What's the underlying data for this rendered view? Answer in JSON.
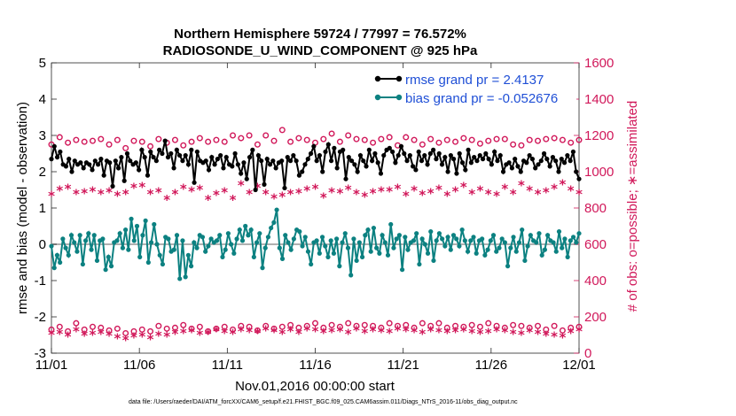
{
  "chart_data": {
    "type": "line",
    "title_line1": "Northern Hemisphere 59724 / 77997 = 76.572%",
    "title_line2": "RADIOSONDE_U_WIND_COMPONENT @ 925 hPa",
    "xlabel": "Nov.01,2016 00:00:00 start",
    "ylabel_left": "rmse and bias (model - observation)",
    "ylabel_right": "# of obs: o=possible; ∗=assimilated",
    "x_ticks": [
      "11/01",
      "11/06",
      "11/11",
      "11/16",
      "11/21",
      "11/26",
      "12/01"
    ],
    "x_range_days": [
      0,
      30
    ],
    "ylim_left": [
      -3,
      5
    ],
    "y_ticks_left": [
      "-3",
      "-2",
      "-1",
      "0",
      "1",
      "2",
      "3",
      "4",
      "5"
    ],
    "ylim_right": [
      0,
      1600
    ],
    "y_ticks_right": [
      "0",
      "200",
      "400",
      "600",
      "800",
      "1000",
      "1200",
      "1400",
      "1600"
    ],
    "footer": "data file: /Users/raeder/DAI/ATM_forcXX/CAM6_setup/f.e21.FHIST_BGC.f09_025.CAM6assim.011/Diags_NTrS_2016-11/obs_diag_output.nc",
    "colors": {
      "rmse": "#000000",
      "bias": "#0c8181",
      "obs": "#d1185a",
      "legend_text": "#1f4fd6",
      "zero_line": "#b0b0b0"
    },
    "series": [
      {
        "name": "rmse grand pr = 2.4137",
        "axis": "left",
        "style": "line-dot",
        "color": "#000000",
        "values": [
          2.35,
          2.7,
          2.4,
          2.55,
          2.2,
          2.15,
          2.35,
          2.0,
          2.3,
          2.2,
          2.25,
          2.1,
          2.25,
          2.2,
          2.05,
          2.3,
          2.2,
          2.35,
          1.9,
          2.3,
          2.25,
          1.6,
          2.3,
          2.1,
          2.4,
          1.75,
          2.5,
          2.3,
          2.2,
          2.25,
          2.05,
          2.6,
          2.4,
          1.9,
          2.55,
          2.4,
          2.3,
          2.6,
          2.5,
          2.85,
          2.4,
          2.5,
          2.1,
          2.6,
          2.45,
          2.3,
          2.45,
          2.2,
          2.6,
          1.7,
          2.55,
          2.3,
          2.25,
          2.3,
          2.05,
          2.4,
          2.2,
          2.35,
          2.45,
          2.1,
          2.4,
          2.2,
          2.15,
          2.5,
          2.2,
          1.95,
          2.25,
          1.8,
          2.4,
          2.6,
          1.5,
          2.45,
          2.3,
          1.65,
          2.35,
          2.2,
          2.3,
          2.1,
          2.25,
          2.3,
          1.55,
          2.4,
          2.3,
          2.45,
          2.3,
          1.9,
          2.0,
          2.2,
          2.35,
          2.5,
          2.7,
          2.3,
          2.45,
          2.0,
          2.55,
          2.75,
          2.3,
          2.65,
          2.1,
          2.55,
          2.6,
          1.8,
          2.4,
          2.3,
          2.2,
          2.0,
          2.45,
          2.3,
          2.15,
          2.6,
          2.3,
          2.5,
          2.25,
          1.95,
          2.45,
          2.6,
          2.65,
          2.55,
          2.25,
          2.45,
          2.7,
          2.5,
          2.3,
          2.45,
          2.15,
          2.05,
          2.55,
          2.3,
          2.45,
          2.2,
          2.5,
          2.6,
          2.35,
          2.5,
          2.2,
          2.4,
          2.0,
          2.45,
          2.35,
          1.95,
          2.5,
          2.25,
          2.05,
          2.6,
          2.25,
          2.4,
          2.3,
          2.45,
          2.35,
          2.5,
          2.35,
          2.2,
          2.55,
          2.3,
          2.45,
          2.0,
          2.2,
          2.25,
          2.1,
          2.35,
          2.15,
          2.0,
          2.3,
          2.25,
          2.45,
          2.35,
          2.1,
          2.2,
          2.3,
          2.5,
          2.35,
          2.15,
          2.4,
          2.3,
          2.0,
          2.35,
          2.25,
          2.45,
          2.3,
          2.55,
          2.0,
          1.8
        ]
      },
      {
        "name": "bias grand pr = -0.052676",
        "axis": "left",
        "style": "line-dot",
        "color": "#0c8181",
        "values": [
          -0.05,
          -0.65,
          -0.3,
          -0.5,
          0.15,
          -0.1,
          -0.3,
          0.25,
          0.05,
          -0.2,
          0.25,
          -0.55,
          0.1,
          0.3,
          -0.15,
          0.25,
          -0.45,
          0.1,
          0.15,
          -0.7,
          -0.35,
          -0.6,
          0.05,
          0.1,
          0.3,
          -0.1,
          0.4,
          -0.15,
          0.7,
          0.1,
          0.5,
          -0.35,
          0.25,
          0.65,
          -0.5,
          0.05,
          0.55,
          0.0,
          -0.3,
          -0.55,
          0.2,
          0.15,
          -0.2,
          -0.15,
          0.25,
          -0.95,
          0.1,
          -0.9,
          -0.3,
          -0.6,
          0.05,
          -0.1,
          0.25,
          0.2,
          -0.2,
          -0.05,
          0.15,
          0.05,
          0.1,
          0.25,
          -0.35,
          -0.15,
          0.3,
          0.0,
          -0.25,
          0.15,
          0.4,
          0.1,
          0.5,
          0.25,
          0.4,
          -0.35,
          0.05,
          0.3,
          -0.65,
          -0.1,
          0.2,
          0.45,
          0.6,
          0.95,
          -0.1,
          -0.4,
          0.25,
          0.05,
          -0.15,
          0.15,
          0.4,
          0.35,
          -0.05,
          0.2,
          -0.2,
          -0.55,
          0.05,
          0.1,
          -0.25,
          0.2,
          -0.05,
          -0.35,
          0.1,
          -0.25,
          0.15,
          -0.6,
          0.05,
          0.3,
          -0.1,
          -0.85,
          0.15,
          -0.45,
          0.05,
          -0.35,
          0.25,
          0.4,
          -0.2,
          0.45,
          -0.1,
          -0.25,
          0.25,
          0.05,
          -0.3,
          0.55,
          -0.1,
          0.15,
          0.25,
          -0.7,
          0.2,
          -0.15,
          0.05,
          0.1,
          0.3,
          -0.55,
          0.15,
          0.0,
          -0.25,
          0.35,
          -0.45,
          0.1,
          0.3,
          0.15,
          -0.05,
          0.2,
          -0.15,
          0.25,
          0.15,
          -0.05,
          0.4,
          0.1,
          -0.2,
          0.1,
          0.2,
          -0.25,
          0.1,
          0.15,
          -0.3,
          -0.15,
          0.1,
          0.25,
          -0.2,
          -0.1,
          0.15,
          0.05,
          -0.6,
          -0.1,
          0.2,
          -0.2,
          0.05,
          0.4,
          -0.45,
          -0.05,
          0.25,
          0.1,
          0.05,
          0.3,
          -0.3,
          -0.15,
          0.25,
          0.1,
          0.05,
          -0.2,
          0.35,
          -0.1,
          0.15,
          -0.35,
          0.1,
          0.2,
          0.05,
          0.3
        ]
      },
      {
        "name": "possible (upper)",
        "axis": "right",
        "style": "circle",
        "color": "#d1185a",
        "values": [
          1150,
          1190,
          1160,
          1175,
          1165,
          1170,
          1180,
          1150,
          1175,
          1130,
          1170,
          1165,
          1140,
          1180,
          1160,
          1175,
          1145,
          1165,
          1185,
          1165,
          1175,
          1165,
          1200,
          1185,
          1200,
          1150,
          1200,
          1170,
          1230,
          1165,
          1185,
          1175,
          1160,
          1180,
          1210,
          1165,
          1200,
          1180,
          1175,
          1160,
          1180,
          1190,
          1145,
          1190,
          1175,
          1150,
          1180,
          1160,
          1175,
          1165,
          1185,
          1175,
          1155,
          1170,
          1180,
          1180,
          1150,
          1145,
          1175,
          1170,
          1180,
          1185,
          1175,
          1160,
          1175
        ]
      },
      {
        "name": "assimilated (upper)",
        "axis": "right",
        "style": "star",
        "color": "#d1185a",
        "values": [
          870,
          900,
          910,
          880,
          885,
          895,
          880,
          890,
          870,
          880,
          915,
          920,
          880,
          890,
          850,
          880,
          910,
          895,
          905,
          850,
          875,
          890,
          850,
          930,
          880,
          915,
          880,
          855,
          865,
          880,
          885,
          900,
          910,
          860,
          890,
          885,
          905,
          880,
          865,
          885,
          895,
          895,
          910,
          870,
          900,
          875,
          885,
          905,
          870,
          895,
          920,
          880,
          900,
          880,
          870,
          910,
          880,
          930,
          900,
          880,
          890,
          910,
          935,
          900,
          880
        ]
      },
      {
        "name": "possible (lower)",
        "axis": "right",
        "style": "circle",
        "color": "#d1185a",
        "values": [
          130,
          145,
          120,
          165,
          130,
          145,
          140,
          125,
          135,
          110,
          120,
          130,
          120,
          150,
          135,
          140,
          155,
          135,
          145,
          120,
          135,
          145,
          130,
          150,
          145,
          125,
          150,
          135,
          145,
          155,
          140,
          150,
          165,
          140,
          155,
          145,
          165,
          150,
          155,
          150,
          140,
          165,
          150,
          155,
          140,
          165,
          150,
          165,
          140,
          150,
          145,
          155,
          145,
          165,
          150,
          140,
          155,
          150,
          140,
          150,
          130,
          150,
          125,
          140,
          145
        ]
      },
      {
        "name": "assimilated (lower)",
        "axis": "right",
        "style": "star",
        "color": "#d1185a",
        "values": [
          105,
          110,
          95,
          125,
          100,
          105,
          110,
          100,
          85,
          75,
          90,
          95,
          80,
          100,
          95,
          110,
          115,
          120,
          105,
          110,
          125,
          115,
          110,
          125,
          120,
          115,
          130,
          120,
          110,
          125,
          110,
          130,
          125,
          115,
          120,
          125,
          110,
          130,
          115,
          125,
          120,
          115,
          130,
          125,
          120,
          110,
          125,
          120,
          115,
          120,
          125,
          115,
          110,
          115,
          125,
          120,
          110,
          105,
          120,
          110,
          100,
          95,
          90,
          115,
          125
        ]
      }
    ]
  }
}
